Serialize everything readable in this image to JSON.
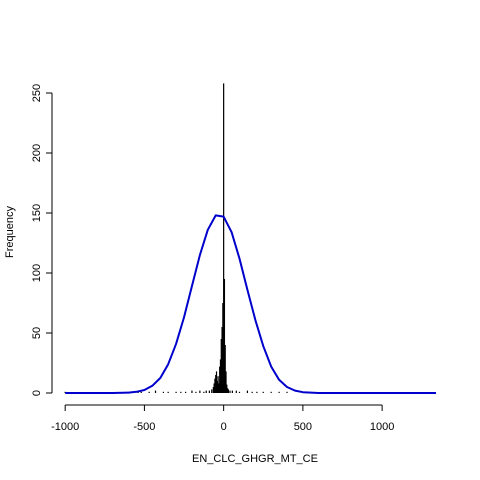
{
  "chart_data": {
    "type": "histogram",
    "title": "",
    "xlabel": "EN_CLC_GHGR_MT_CE",
    "ylabel": "Frequency",
    "xlim": [
      -1020,
      1340
    ],
    "ylim": [
      0,
      260
    ],
    "x_ticks": [
      -1000,
      -500,
      0,
      500,
      1000
    ],
    "y_ticks": [
      0,
      50,
      100,
      150,
      200,
      250
    ],
    "x_tick_labels": [
      "-1000",
      "-500",
      "0",
      "500",
      "1000"
    ],
    "y_tick_labels": [
      "0",
      "50",
      "100",
      "150",
      "200",
      "250"
    ],
    "grid": false,
    "legend": "none",
    "bar_color": "#000000",
    "curve_color": "#0000cc",
    "bin_width": 5,
    "bars": [
      {
        "x": -1000,
        "count": 1
      },
      {
        "x": -540,
        "count": 1
      },
      {
        "x": -520,
        "count": 1
      },
      {
        "x": -470,
        "count": 1
      },
      {
        "x": -430,
        "count": 2
      },
      {
        "x": -380,
        "count": 1
      },
      {
        "x": -350,
        "count": 1
      },
      {
        "x": -300,
        "count": 1
      },
      {
        "x": -270,
        "count": 1
      },
      {
        "x": -240,
        "count": 1
      },
      {
        "x": -200,
        "count": 2
      },
      {
        "x": -175,
        "count": 1
      },
      {
        "x": -150,
        "count": 2
      },
      {
        "x": -125,
        "count": 1
      },
      {
        "x": -110,
        "count": 2
      },
      {
        "x": -90,
        "count": 2
      },
      {
        "x": -75,
        "count": 3
      },
      {
        "x": -65,
        "count": 5
      },
      {
        "x": -60,
        "count": 8
      },
      {
        "x": -55,
        "count": 12
      },
      {
        "x": -50,
        "count": 15
      },
      {
        "x": -45,
        "count": 18
      },
      {
        "x": -40,
        "count": 10
      },
      {
        "x": -35,
        "count": 14
      },
      {
        "x": -30,
        "count": 8
      },
      {
        "x": -25,
        "count": 22
      },
      {
        "x": -20,
        "count": 28
      },
      {
        "x": -15,
        "count": 45
      },
      {
        "x": -10,
        "count": 55
      },
      {
        "x": -5,
        "count": 75
      },
      {
        "x": 0,
        "count": 258
      },
      {
        "x": 5,
        "count": 95
      },
      {
        "x": 10,
        "count": 40
      },
      {
        "x": 15,
        "count": 18
      },
      {
        "x": 20,
        "count": 7
      },
      {
        "x": 25,
        "count": 4
      },
      {
        "x": 30,
        "count": 3
      },
      {
        "x": 40,
        "count": 2
      },
      {
        "x": 55,
        "count": 2
      },
      {
        "x": 80,
        "count": 2
      },
      {
        "x": 100,
        "count": 1
      },
      {
        "x": 150,
        "count": 2
      },
      {
        "x": 180,
        "count": 1
      },
      {
        "x": 210,
        "count": 1
      },
      {
        "x": 250,
        "count": 1
      },
      {
        "x": 300,
        "count": 1
      },
      {
        "x": 350,
        "count": 1
      },
      {
        "x": 400,
        "count": 1
      }
    ],
    "normal_curve": {
      "x": [
        -1000,
        -900,
        -800,
        -700,
        -600,
        -550,
        -500,
        -450,
        -400,
        -350,
        -300,
        -250,
        -200,
        -150,
        -100,
        -50,
        0,
        50,
        100,
        150,
        200,
        250,
        300,
        350,
        400,
        450,
        500,
        600,
        700,
        800,
        900,
        1000,
        1100,
        1200,
        1340
      ],
      "y": [
        0,
        0,
        0,
        0,
        0.3,
        1,
        2.5,
        6,
        12.5,
        24,
        41,
        63,
        89,
        115,
        136,
        148,
        147,
        134,
        112,
        86,
        61,
        39,
        22,
        11,
        5,
        2,
        0.7,
        0,
        0,
        0,
        0,
        0,
        0,
        0,
        0
      ]
    }
  }
}
